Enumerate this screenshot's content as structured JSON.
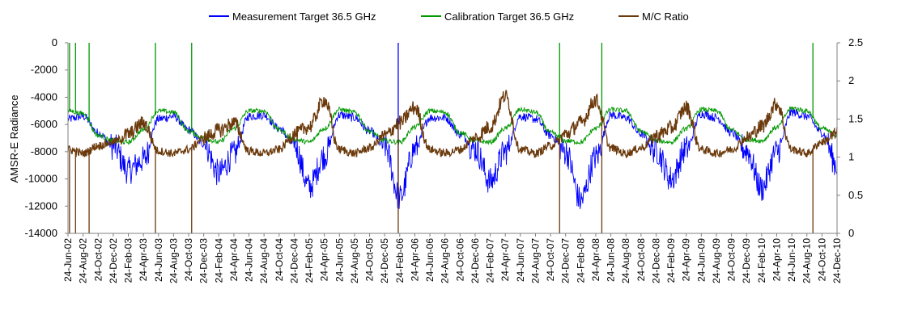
{
  "chart_data": {
    "type": "line",
    "ylabel": "AMSR-E Radiance",
    "y2label": "",
    "ylim": [
      -14000,
      0
    ],
    "y2lim": [
      0,
      2.5
    ],
    "y_ticks": [
      "0",
      "-2000",
      "-4000",
      "-6000",
      "-8000",
      "-10000",
      "-12000",
      "-14000"
    ],
    "y2_ticks": [
      "2.5",
      "2",
      "1.5",
      "1",
      "0.5",
      "0"
    ],
    "x_ticks": [
      "24-Jun-02",
      "24-Aug-02",
      "24-Oct-02",
      "24-Dec-02",
      "24-Feb-03",
      "24-Apr-03",
      "24-Jun-03",
      "24-Aug-03",
      "24-Oct-03",
      "24-Dec-03",
      "24-Feb-04",
      "24-Apr-04",
      "24-Jun-04",
      "24-Aug-04",
      "24-Oct-04",
      "24-Dec-04",
      "24-Feb-05",
      "24-Apr-05",
      "24-Jun-05",
      "24-Aug-05",
      "24-Oct-05",
      "24-Dec-05",
      "24-Feb-06",
      "24-Apr-06",
      "24-Jun-06",
      "24-Aug-06",
      "24-Oct-06",
      "24-Dec-06",
      "24-Feb-07",
      "24-Apr-07",
      "24-Jun-07",
      "24-Aug-07",
      "24-Oct-07",
      "24-Dec-07",
      "24-Feb-08",
      "24-Apr-08",
      "24-Jun-08",
      "24-Aug-08",
      "24-Oct-08",
      "24-Dec-08",
      "24-Feb-09",
      "24-Apr-09",
      "24-Jun-09",
      "24-Aug-09",
      "24-Oct-09",
      "24-Dec-09",
      "24-Feb-10",
      "24-Apr-10",
      "24-Jun-10",
      "24-Aug-10",
      "24-Oct-10",
      "24-Dec-10"
    ],
    "legend_position": "top",
    "grid": false,
    "series": [
      {
        "name": "Measurement Target 36.5 GHz",
        "axis": "left",
        "color": "#0000ff",
        "x": [
          0,
          1,
          2,
          3,
          4,
          5,
          6,
          7,
          8,
          9,
          10,
          11,
          12,
          13,
          14,
          15,
          16,
          17,
          18,
          19,
          20,
          21,
          22,
          23,
          24,
          25,
          26,
          27,
          28,
          29,
          30,
          31,
          32,
          33,
          34,
          35,
          36,
          37,
          38,
          39,
          40,
          41,
          42,
          43,
          44,
          45,
          46,
          47,
          48,
          49,
          50,
          51
        ],
        "values": [
          -5600,
          -5400,
          -6600,
          -7600,
          -9400,
          -8600,
          -5600,
          -5400,
          -6400,
          -7400,
          -9600,
          -8200,
          -5400,
          -5300,
          -6300,
          -7500,
          -10600,
          -8300,
          -5300,
          -5500,
          -6500,
          -7600,
          -11400,
          -7800,
          -5500,
          -5500,
          -6700,
          -7800,
          -10200,
          -8000,
          -5400,
          -5600,
          -6800,
          -8000,
          -11600,
          -8400,
          -5300,
          -5500,
          -6700,
          -7900,
          -10000,
          -7800,
          -5200,
          -5500,
          -6600,
          -7900,
          -10700,
          -8000,
          -5100,
          -5400,
          -6600,
          -9000
        ]
      },
      {
        "name": "Calibration Target 36.5 GHz",
        "axis": "left",
        "color": "#009900",
        "x": [
          0,
          1,
          2,
          3,
          4,
          5,
          6,
          7,
          8,
          9,
          10,
          11,
          12,
          13,
          14,
          15,
          16,
          17,
          18,
          19,
          20,
          21,
          22,
          23,
          24,
          25,
          26,
          27,
          28,
          29,
          30,
          31,
          32,
          33,
          34,
          35,
          36,
          37,
          38,
          39,
          40,
          41,
          42,
          43,
          44,
          45,
          46,
          47,
          48,
          49,
          50,
          51
        ],
        "values": [
          -5000,
          -5200,
          -6800,
          -7200,
          -7300,
          -6400,
          -5000,
          -5100,
          -6500,
          -7000,
          -7300,
          -6300,
          -5000,
          -5000,
          -6400,
          -7100,
          -7300,
          -6300,
          -4900,
          -5100,
          -6500,
          -7200,
          -7300,
          -6200,
          -5000,
          -5100,
          -6600,
          -7200,
          -7300,
          -6300,
          -4900,
          -5100,
          -6600,
          -7200,
          -7300,
          -6300,
          -4900,
          -5000,
          -6500,
          -7200,
          -7300,
          -6300,
          -4900,
          -5000,
          -6400,
          -7100,
          -7200,
          -6200,
          -4800,
          -5000,
          -6300,
          -6800
        ]
      },
      {
        "name": "M/C Ratio",
        "axis": "right",
        "color": "#6b3a0c",
        "x": [
          0,
          1,
          2,
          3,
          4,
          5,
          6,
          7,
          8,
          9,
          10,
          11,
          12,
          13,
          14,
          15,
          16,
          17,
          18,
          19,
          20,
          21,
          22,
          23,
          24,
          25,
          26,
          27,
          28,
          29,
          30,
          31,
          32,
          33,
          34,
          35,
          36,
          37,
          38,
          39,
          40,
          41,
          42,
          43,
          44,
          45,
          46,
          47,
          48,
          49,
          50,
          51
        ],
        "values": [
          1.1,
          1.05,
          1.15,
          1.2,
          1.3,
          1.45,
          1.08,
          1.05,
          1.1,
          1.25,
          1.35,
          1.45,
          1.08,
          1.05,
          1.1,
          1.3,
          1.4,
          1.75,
          1.1,
          1.05,
          1.12,
          1.28,
          1.45,
          1.65,
          1.1,
          1.05,
          1.1,
          1.25,
          1.4,
          1.8,
          1.1,
          1.05,
          1.15,
          1.3,
          1.45,
          1.75,
          1.12,
          1.05,
          1.12,
          1.28,
          1.38,
          1.65,
          1.1,
          1.05,
          1.1,
          1.25,
          1.4,
          1.7,
          1.1,
          1.05,
          1.2,
          1.3
        ]
      }
    ],
    "spikes": [
      {
        "series": "Calibration Target 36.5 GHz",
        "x": 0.1,
        "value": 0
      },
      {
        "series": "Calibration Target 36.5 GHz",
        "x": 0.5,
        "value": 0
      },
      {
        "series": "Calibration Target 36.5 GHz",
        "x": 1.4,
        "value": 0
      },
      {
        "series": "Calibration Target 36.5 GHz",
        "x": 5.8,
        "value": 0
      },
      {
        "series": "Calibration Target 36.5 GHz",
        "x": 8.2,
        "value": 0
      },
      {
        "series": "Measurement Target 36.5 GHz",
        "x": 21.9,
        "value": 0
      },
      {
        "series": "Calibration Target 36.5 GHz",
        "x": 32.6,
        "value": 0
      },
      {
        "series": "Calibration Target 36.5 GHz",
        "x": 35.4,
        "value": 0
      },
      {
        "series": "Calibration Target 36.5 GHz",
        "x": 49.4,
        "value": 0
      },
      {
        "series": "M/C Ratio",
        "x": 0.1,
        "value": 0
      },
      {
        "series": "M/C Ratio",
        "x": 0.5,
        "value": 0
      },
      {
        "series": "M/C Ratio",
        "x": 1.4,
        "value": 0
      },
      {
        "series": "M/C Ratio",
        "x": 5.8,
        "value": 0
      },
      {
        "series": "M/C Ratio",
        "x": 8.2,
        "value": 0
      },
      {
        "series": "M/C Ratio",
        "x": 21.9,
        "value": 0
      },
      {
        "series": "M/C Ratio",
        "x": 32.6,
        "value": 0
      },
      {
        "series": "M/C Ratio",
        "x": 35.4,
        "value": 0
      },
      {
        "series": "M/C Ratio",
        "x": 49.4,
        "value": 0
      }
    ]
  }
}
